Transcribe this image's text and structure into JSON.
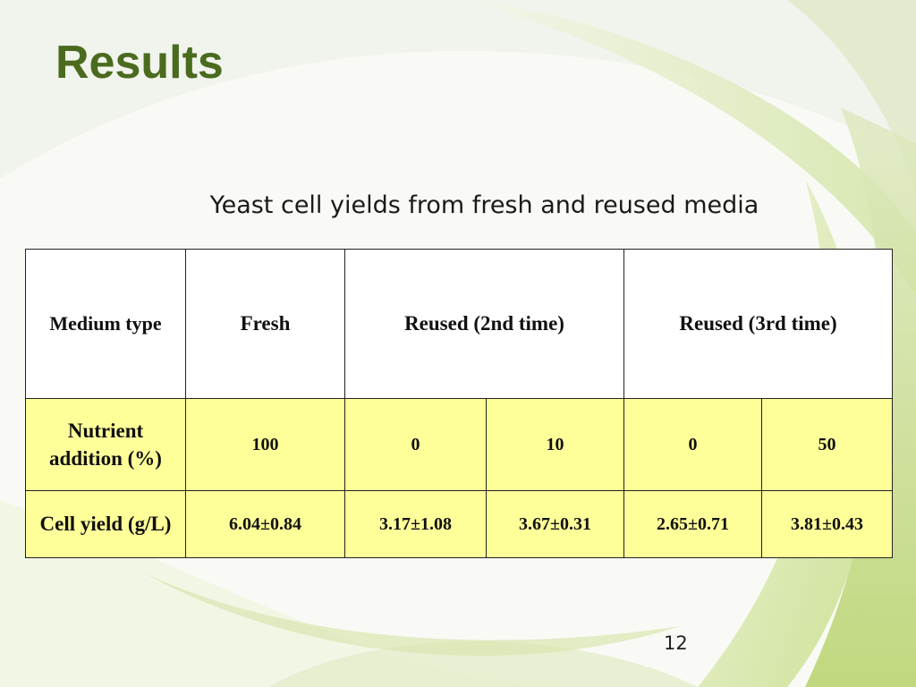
{
  "slide": {
    "title": "Results",
    "subtitle": "Yeast cell yields from fresh and reused media",
    "page_number": "12"
  },
  "table": {
    "header": {
      "label": "Medium type",
      "fresh": "Fresh",
      "reused2": "Reused (2nd time)",
      "reused3": "Reused (3rd time)"
    },
    "nutrient": {
      "label": "Nutrient addition (%)",
      "values": [
        "100",
        "0",
        "10",
        "0",
        "50"
      ]
    },
    "yield": {
      "label": "Cell yield (g/L)",
      "values": [
        "6.04±0.84",
        "3.17±1.08",
        "3.67±0.31",
        "2.65±0.71",
        "3.81±0.43"
      ]
    }
  },
  "colors": {
    "title": "#4a6a1e",
    "highlight_fill": "#ffff99",
    "background_swirl": "#c8dc8a"
  }
}
